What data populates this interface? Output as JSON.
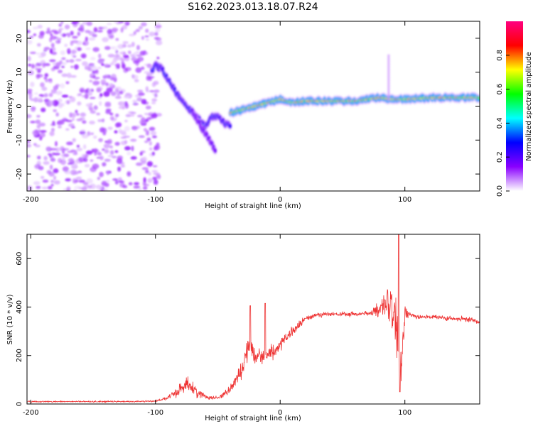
{
  "figure_title": "S162.2023.013.18.07.R24",
  "chart_data": [
    {
      "type": "heatmap",
      "title": "",
      "xlabel": "Height of straight line (km)",
      "ylabel": "Frequency (Hz)",
      "xlim": [
        -203,
        160
      ],
      "ylim": [
        -25,
        25
      ],
      "xticks": [
        -200,
        -100,
        0,
        100
      ],
      "yticks": [
        -20,
        -10,
        0,
        10,
        20
      ],
      "grid": false,
      "colorbar": {
        "label": "Normalized spectral amplitude",
        "range": [
          0,
          1
        ],
        "ticks": [
          0.0,
          0.2,
          0.4,
          0.6,
          0.8
        ],
        "colormap": [
          "#ffffff",
          "#8a00ff",
          "#0000ff",
          "#00ffff",
          "#00ff00",
          "#ffff00",
          "#ff0000",
          "#ff0080"
        ]
      },
      "noise_region": {
        "x": [
          -203,
          -97
        ],
        "y": [
          -25,
          25
        ],
        "amplitude": 0.12
      },
      "ridges": [
        {
          "x": [
            -103,
            -100,
            -95,
            -90,
            -85,
            -80,
            -75,
            -70,
            -65,
            -60,
            -55,
            -50,
            -45,
            -40
          ],
          "y": [
            10,
            12,
            11,
            8,
            5,
            2,
            0,
            -2,
            -4,
            -6,
            -3,
            -3,
            -5,
            -6
          ],
          "amplitude": 0.3
        },
        {
          "x": [
            -70,
            -65,
            -60,
            -55,
            -52
          ],
          "y": [
            -2,
            -5,
            -8,
            -11,
            -13
          ],
          "amplitude": 0.2
        },
        {
          "x": [
            -40,
            -30,
            -20,
            -10,
            0,
            10,
            20,
            40,
            60,
            80,
            90,
            100,
            120,
            140,
            160
          ],
          "y": [
            -2,
            -1,
            0,
            1,
            2,
            1,
            1.5,
            1.5,
            1.5,
            2.5,
            2,
            2,
            2.5,
            2.5,
            2.5
          ],
          "amplitude": 0.75
        }
      ],
      "spike": {
        "x": 87,
        "y": [
          2,
          15
        ]
      }
    },
    {
      "type": "line",
      "title": "",
      "xlabel": "Height of straight line (km)",
      "ylabel": "SNR (10 * v/v)",
      "xlim": [
        -203,
        160
      ],
      "ylim": [
        0,
        700
      ],
      "xticks": [
        -200,
        -100,
        0,
        100
      ],
      "yticks": [
        0,
        200,
        400,
        600
      ],
      "grid": false,
      "series": [
        {
          "color": "#ee3333",
          "envelope": {
            "x": [
              -203,
              -180,
              -160,
              -140,
              -120,
              -100,
              -90,
              -80,
              -75,
              -70,
              -60,
              -50,
              -40,
              -30,
              -25,
              -20,
              -10,
              0,
              10,
              20,
              30,
              40,
              50,
              60,
              70,
              75,
              80,
              85,
              90,
              95,
              97,
              100,
              105,
              110,
              120,
              130,
              140,
              150,
              160
            ],
            "values": [
              10,
              10,
              10,
              10,
              10,
              12,
              25,
              60,
              90,
              60,
              30,
              25,
              60,
              150,
              250,
              200,
              200,
              240,
              300,
              350,
              370,
              370,
              370,
              370,
              375,
              380,
              380,
              420,
              380,
              250,
              120,
              380,
              370,
              360,
              360,
              355,
              350,
              350,
              340
            ],
            "noise": [
              4,
              4,
              4,
              4,
              4,
              5,
              10,
              40,
              50,
              40,
              15,
              10,
              30,
              60,
              70,
              50,
              50,
              40,
              30,
              20,
              15,
              15,
              15,
              15,
              15,
              25,
              60,
              100,
              150,
              200,
              150,
              50,
              15,
              15,
              15,
              15,
              15,
              15,
              15
            ]
          },
          "peaks": [
            {
              "x": -24,
              "y": 405
            },
            {
              "x": -12,
              "y": 415
            },
            {
              "x": 95,
              "y": 700
            },
            {
              "x": 96,
              "y": 50
            }
          ]
        }
      ]
    }
  ]
}
